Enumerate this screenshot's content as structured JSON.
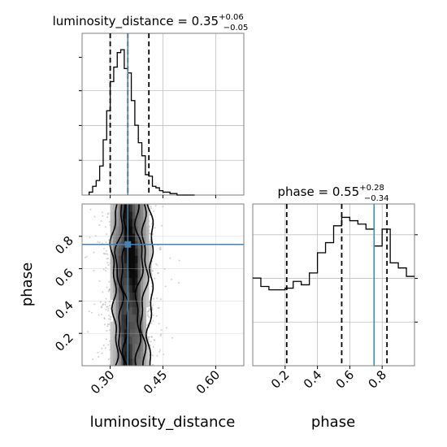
{
  "chart_data": {
    "type": "corner",
    "parameters": [
      "luminosity_distance",
      "phase"
    ],
    "truths": {
      "luminosity_distance": 0.35,
      "phase": 0.75
    },
    "truth_color": "#4682b4",
    "panels": [
      {
        "kind": "histogram",
        "param": "luminosity_distance",
        "title": {
          "prefix": "luminosity_distance = ",
          "median": "0.35",
          "plus": "+0.06",
          "minus": "−0.05"
        },
        "quantiles": [
          0.3,
          0.35,
          0.41
        ],
        "xlim": [
          0.22,
          0.68
        ],
        "bin_edges": [
          0.24,
          0.25,
          0.26,
          0.27,
          0.28,
          0.29,
          0.3,
          0.31,
          0.32,
          0.33,
          0.34,
          0.35,
          0.36,
          0.37,
          0.38,
          0.39,
          0.4,
          0.41,
          0.42,
          0.43,
          0.44,
          0.45,
          0.46,
          0.47,
          0.48,
          0.49,
          0.5,
          0.51,
          0.52,
          0.53,
          0.54
        ],
        "counts": [
          0.02,
          0.06,
          0.1,
          0.2,
          0.38,
          0.58,
          0.78,
          0.88,
          0.98,
          1.0,
          0.87,
          0.84,
          0.65,
          0.48,
          0.36,
          0.27,
          0.14,
          0.13,
          0.06,
          0.05,
          0.03,
          0.02,
          0.02,
          0.01,
          0.01,
          0.0,
          0.0,
          0.0,
          0.0,
          0.0
        ],
        "xticks": [
          "0.30",
          "0.45",
          "0.60"
        ]
      },
      {
        "kind": "histogram",
        "param": "phase",
        "title": {
          "prefix": "phase = ",
          "median": "0.55",
          "plus": "+0.28",
          "minus": "−0.34"
        },
        "quantiles": [
          0.21,
          0.55,
          0.83
        ],
        "xlim": [
          0.0,
          1.0
        ],
        "xticks": [
          "0.2",
          "0.4",
          "0.6",
          "0.8"
        ],
        "bin_edges": [
          0.0,
          0.05,
          0.1,
          0.15,
          0.2,
          0.25,
          0.3,
          0.35,
          0.4,
          0.45,
          0.5,
          0.55,
          0.6,
          0.65,
          0.7,
          0.75,
          0.8,
          0.85,
          0.9,
          0.95,
          1.0
        ],
        "counts": [
          0.52,
          0.47,
          0.45,
          0.45,
          0.46,
          0.5,
          0.48,
          0.55,
          0.67,
          0.73,
          0.83,
          0.88,
          0.86,
          0.84,
          0.81,
          0.71,
          0.81,
          0.61,
          0.58,
          0.53
        ]
      },
      {
        "kind": "2d",
        "xparam": "luminosity_distance",
        "yparam": "phase",
        "xlim": [
          0.22,
          0.68
        ],
        "ylim": [
          0.0,
          1.0
        ],
        "xticks": [
          "0.30",
          "0.45",
          "0.60"
        ],
        "yticks": [
          "0.2",
          "0.4",
          "0.6",
          "0.8"
        ]
      }
    ],
    "xlabels": [
      "luminosity_distance",
      "phase"
    ],
    "ylabel": "phase"
  }
}
